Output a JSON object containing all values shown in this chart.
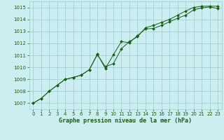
{
  "title": "Graphe pression niveau de la mer (hPa)",
  "bg_color": "#cceef0",
  "grid_color": "#99cccc",
  "line_color": "#1a5c1a",
  "marker_color": "#1a5c1a",
  "xlim": [
    -0.5,
    23.5
  ],
  "ylim": [
    1006.5,
    1015.5
  ],
  "yticks": [
    1007,
    1008,
    1009,
    1010,
    1011,
    1012,
    1013,
    1014,
    1015
  ],
  "xticks": [
    0,
    1,
    2,
    3,
    4,
    5,
    6,
    7,
    8,
    9,
    10,
    11,
    12,
    13,
    14,
    15,
    16,
    17,
    18,
    19,
    20,
    21,
    22,
    23
  ],
  "series1_x": [
    0,
    1,
    2,
    3,
    4,
    5,
    6,
    7,
    8,
    9,
    10,
    11,
    12,
    13,
    14,
    15,
    16,
    17,
    18,
    19,
    20,
    21,
    22,
    23
  ],
  "series1_y": [
    1007.0,
    1007.4,
    1008.0,
    1008.5,
    1009.0,
    1009.15,
    1009.35,
    1009.8,
    1011.05,
    1010.05,
    1010.3,
    1011.55,
    1012.15,
    1012.55,
    1013.3,
    1013.5,
    1013.75,
    1014.0,
    1014.35,
    1014.7,
    1015.0,
    1015.1,
    1015.1,
    1015.1
  ],
  "series2_x": [
    0,
    1,
    2,
    3,
    4,
    5,
    6,
    7,
    8,
    9,
    10,
    11,
    12,
    13,
    14,
    15,
    16,
    17,
    18,
    19,
    20,
    21,
    22,
    23
  ],
  "series2_y": [
    1007.0,
    1007.4,
    1008.0,
    1008.5,
    1009.0,
    1009.15,
    1009.35,
    1009.8,
    1011.1,
    1009.9,
    1011.05,
    1012.15,
    1012.05,
    1012.65,
    1013.2,
    1013.25,
    1013.5,
    1013.8,
    1014.1,
    1014.35,
    1014.8,
    1014.95,
    1015.05,
    1014.9
  ],
  "xlabel_fontsize": 6.0,
  "tick_fontsize": 5.0
}
